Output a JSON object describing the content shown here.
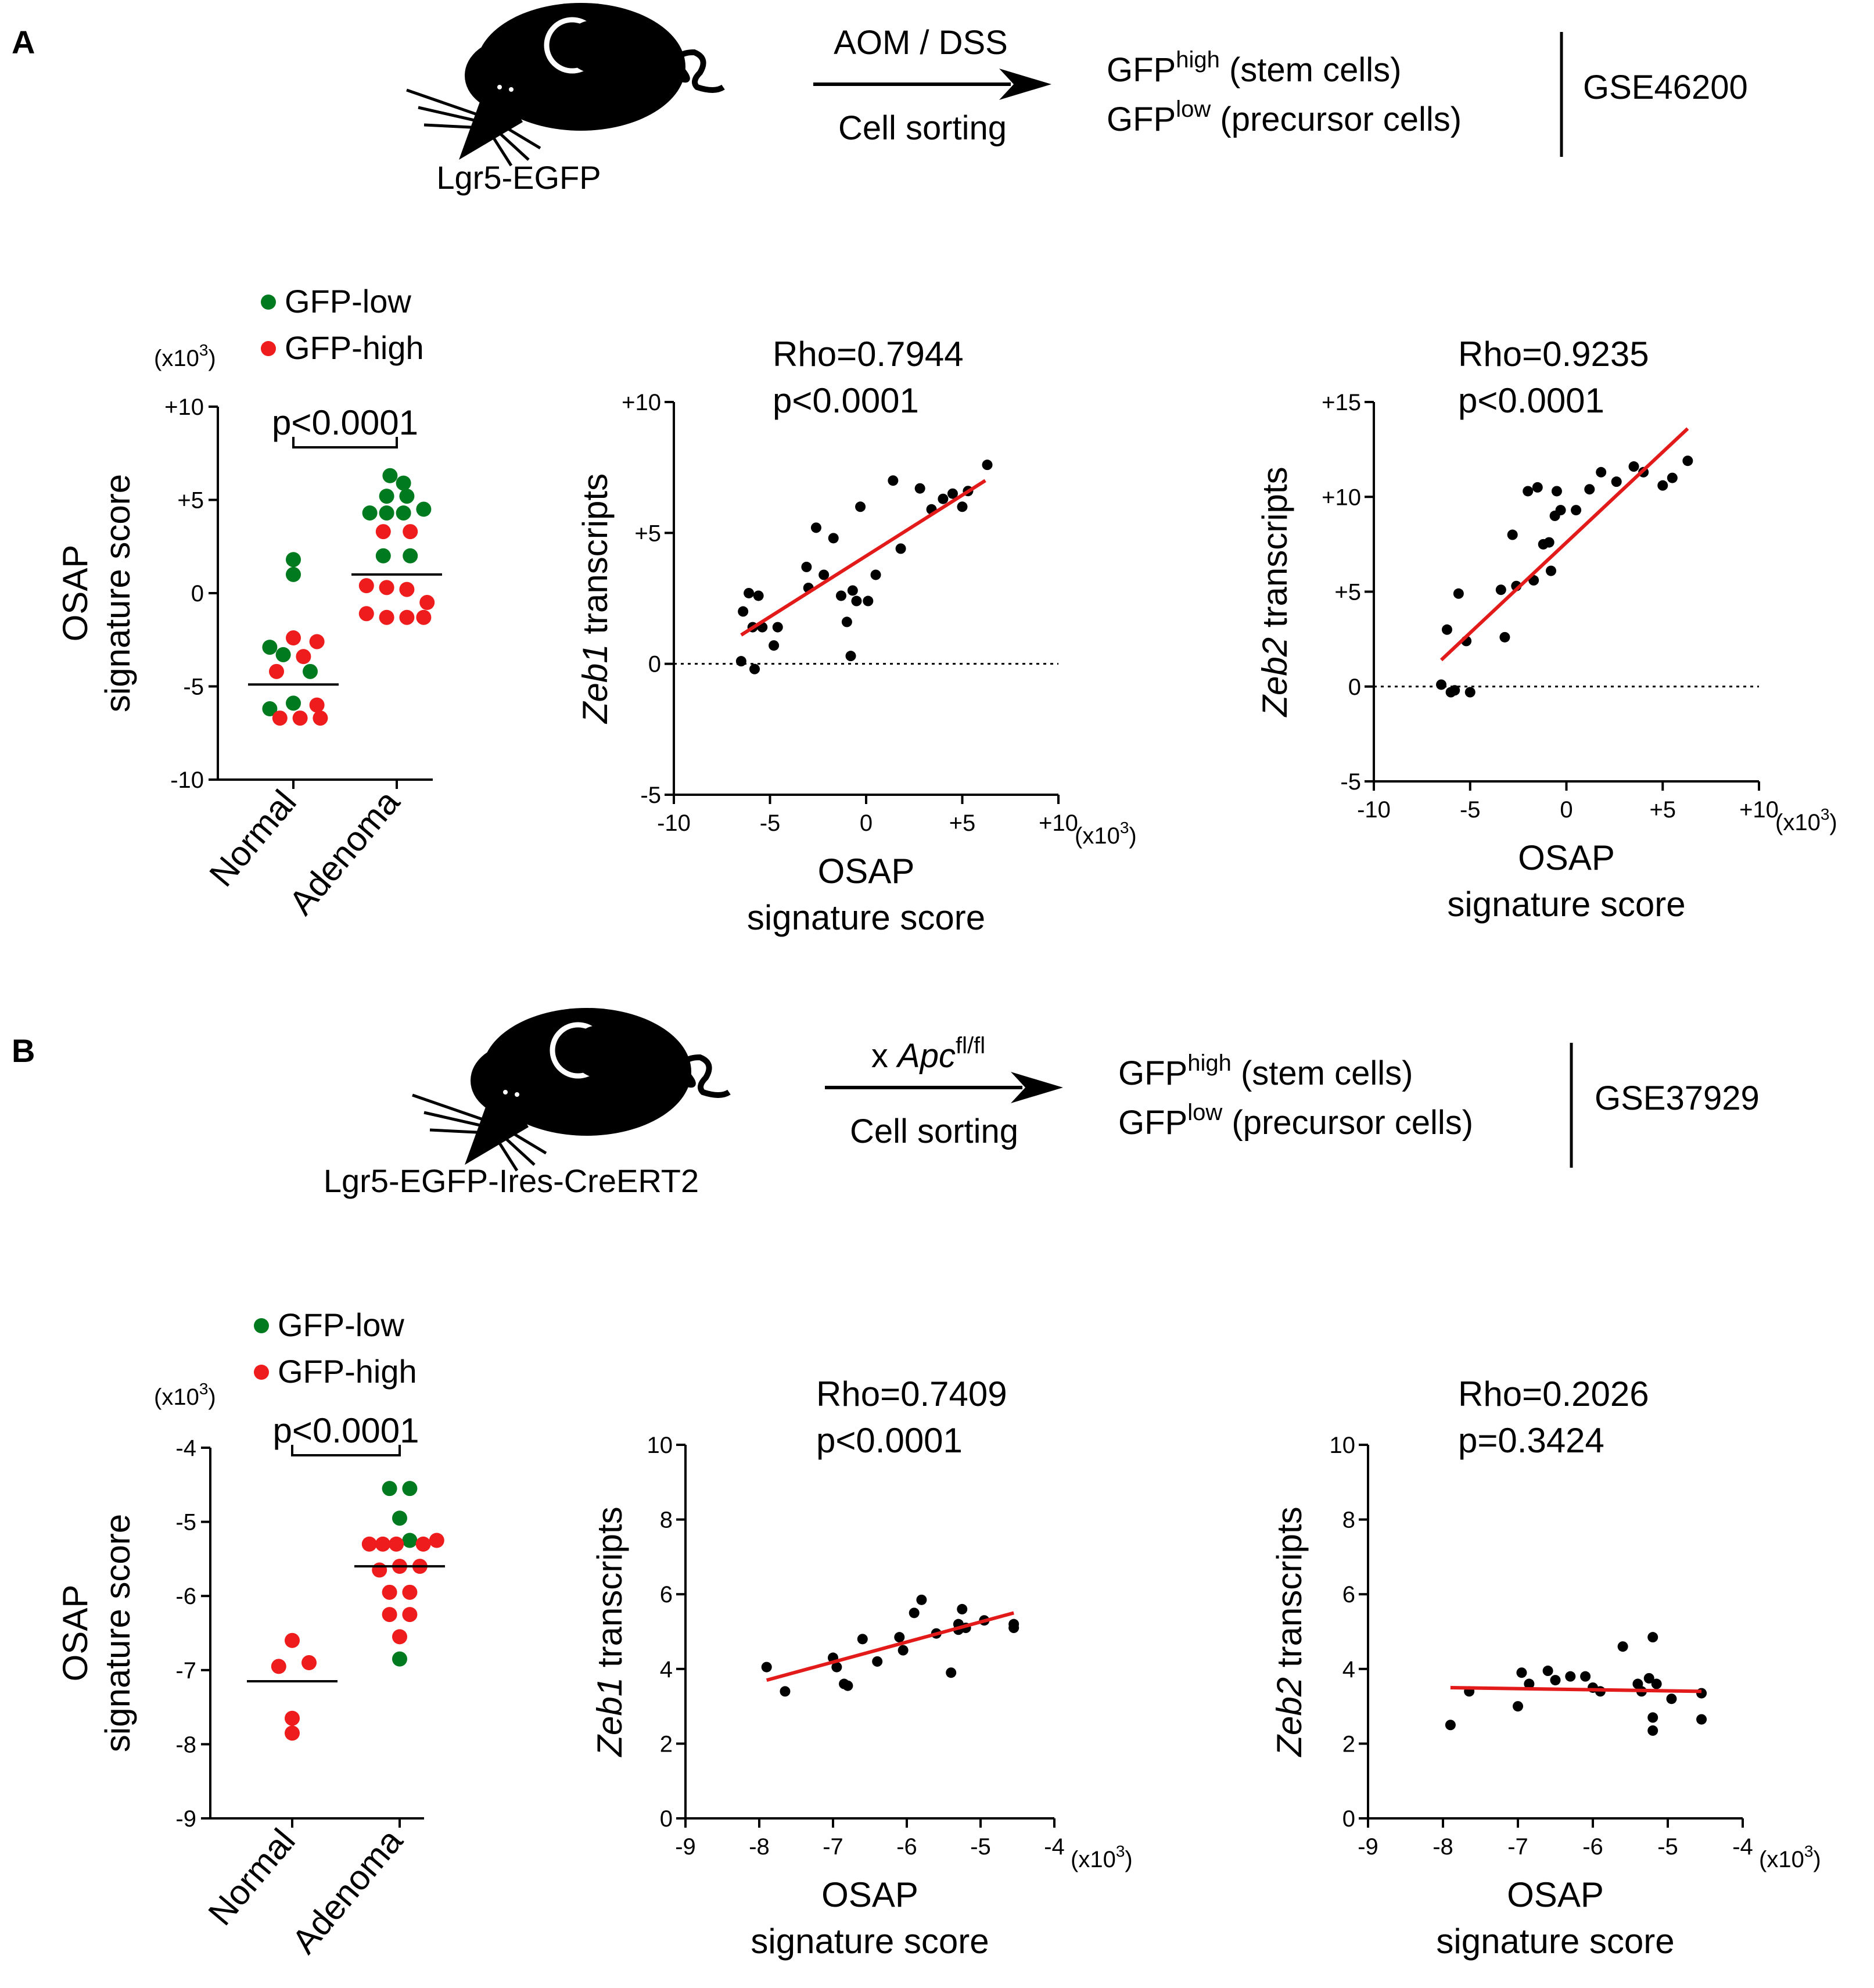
{
  "panels": {
    "A": {
      "label": "A",
      "mouse_label": "Lgr5-EGFP",
      "arrow_top": "AOM / DSS",
      "arrow_bottom": "Cell sorting",
      "sorted": [
        {
          "base": "GFP",
          "sup": "high",
          "rest": " (stem cells)"
        },
        {
          "base": "GFP",
          "sup": "low",
          "rest": " (precursor cells)"
        }
      ],
      "accession": "GSE46200"
    },
    "B": {
      "label": "B",
      "mouse_label": "Lgr5-EGFP-Ires-CreERT2",
      "arrow_top_prefix": "x ",
      "arrow_top_italic": "Apc",
      "arrow_top_sup": "fl/fl",
      "arrow_bottom": "Cell sorting",
      "sorted": [
        {
          "base": "GFP",
          "sup": "high",
          "rest": " (stem cells)"
        },
        {
          "base": "GFP",
          "sup": "low",
          "rest": " (precursor cells)"
        }
      ],
      "accession": "GSE37929"
    }
  },
  "colors": {
    "gfp_low": "#007a1e",
    "gfp_high": "#ee1c1c",
    "fit_line": "#e31a1a",
    "point": "#000000"
  },
  "chart_data": [
    {
      "id": "A-dot",
      "type": "scatter",
      "legend": [
        {
          "label": "GFP-low",
          "color": "#007a1e"
        },
        {
          "label": "GFP-high",
          "color": "#ee1c1c"
        }
      ],
      "scale_note": {
        "base": "(x10",
        "sup": "3",
        "close": ")"
      },
      "ylabel": [
        "OSAP",
        "signature score"
      ],
      "ylim": [
        -10,
        10
      ],
      "yticks": [
        {
          "v": -10,
          "label": "-10"
        },
        {
          "v": -5,
          "label": "-5"
        },
        {
          "v": 0,
          "label": "0"
        },
        {
          "v": 5,
          "label": "+5"
        },
        {
          "v": 10,
          "label": "+10"
        }
      ],
      "categories": [
        "Normal",
        "Adenoma"
      ],
      "pvalue": "p<0.0001",
      "means": [
        -4.9,
        1.0
      ],
      "groups": [
        {
          "name": "Normal",
          "points": [
            {
              "dx": 0,
              "y": 1.8,
              "c": "low"
            },
            {
              "dx": 0,
              "y": 1.0,
              "c": "low"
            },
            {
              "dx": -0.35,
              "y": -2.9,
              "c": "low"
            },
            {
              "dx": 0,
              "y": -2.4,
              "c": "high"
            },
            {
              "dx": 0.35,
              "y": -2.6,
              "c": "high"
            },
            {
              "dx": -0.15,
              "y": -3.3,
              "c": "low"
            },
            {
              "dx": 0.15,
              "y": -3.4,
              "c": "high"
            },
            {
              "dx": -0.25,
              "y": -4.2,
              "c": "high"
            },
            {
              "dx": 0.25,
              "y": -4.2,
              "c": "low"
            },
            {
              "dx": -0.35,
              "y": -6.2,
              "c": "low"
            },
            {
              "dx": 0,
              "y": -5.9,
              "c": "low"
            },
            {
              "dx": 0.35,
              "y": -6.0,
              "c": "high"
            },
            {
              "dx": -0.2,
              "y": -6.7,
              "c": "high"
            },
            {
              "dx": 0.1,
              "y": -6.7,
              "c": "high"
            },
            {
              "dx": 0.4,
              "y": -6.7,
              "c": "high"
            }
          ]
        },
        {
          "name": "Adenoma",
          "points": [
            {
              "dx": -0.1,
              "y": 6.3,
              "c": "low"
            },
            {
              "dx": 0.1,
              "y": 5.9,
              "c": "low"
            },
            {
              "dx": -0.15,
              "y": 5.2,
              "c": "low"
            },
            {
              "dx": 0.15,
              "y": 5.2,
              "c": "low"
            },
            {
              "dx": -0.4,
              "y": 4.3,
              "c": "low"
            },
            {
              "dx": -0.15,
              "y": 4.3,
              "c": "low"
            },
            {
              "dx": 0.1,
              "y": 4.3,
              "c": "low"
            },
            {
              "dx": 0.4,
              "y": 4.5,
              "c": "low"
            },
            {
              "dx": -0.2,
              "y": 3.3,
              "c": "high"
            },
            {
              "dx": 0.2,
              "y": 3.3,
              "c": "high"
            },
            {
              "dx": -0.2,
              "y": 2.0,
              "c": "low"
            },
            {
              "dx": 0.2,
              "y": 2.0,
              "c": "low"
            },
            {
              "dx": -0.45,
              "y": 0.4,
              "c": "high"
            },
            {
              "dx": -0.15,
              "y": 0.3,
              "c": "high"
            },
            {
              "dx": 0.15,
              "y": 0.2,
              "c": "high"
            },
            {
              "dx": 0.45,
              "y": -0.5,
              "c": "high"
            },
            {
              "dx": -0.45,
              "y": -1.1,
              "c": "high"
            },
            {
              "dx": -0.15,
              "y": -1.3,
              "c": "high"
            },
            {
              "dx": 0.15,
              "y": -1.3,
              "c": "high"
            },
            {
              "dx": 0.4,
              "y": -1.3,
              "c": "high"
            }
          ]
        }
      ]
    },
    {
      "id": "A-zeb1",
      "type": "scatter",
      "stat_lines": [
        "Rho=0.7944",
        "p<0.0001"
      ],
      "ylabel_italic": "Zeb1",
      "ylabel_rest": " transcripts",
      "xlabel": [
        "OSAP",
        "signature score"
      ],
      "scale_note": {
        "base": "(x10",
        "sup": "3",
        "close": ")"
      },
      "xlim": [
        -10,
        10
      ],
      "ylim": [
        -5,
        10
      ],
      "xticks": [
        {
          "v": -10,
          "label": "-10"
        },
        {
          "v": -5,
          "label": "-5"
        },
        {
          "v": 0,
          "label": "0"
        },
        {
          "v": 5,
          "label": "+5"
        },
        {
          "v": 10,
          "label": "+10"
        }
      ],
      "yticks": [
        {
          "v": -5,
          "label": "-5"
        },
        {
          "v": 0,
          "label": "0"
        },
        {
          "v": 5,
          "label": "+5"
        },
        {
          "v": 10,
          "label": "+10"
        }
      ],
      "zero_line": true,
      "fit": [
        [
          -6.5,
          1.1
        ],
        [
          6.2,
          7.0
        ]
      ],
      "x": [
        -6.5,
        -6.4,
        -6.1,
        -5.9,
        -5.8,
        -5.6,
        -5.4,
        -4.8,
        -4.6,
        -3.1,
        -3.0,
        -2.6,
        -2.2,
        -1.7,
        -1.3,
        -1.0,
        -0.8,
        -0.7,
        -0.5,
        -0.3,
        0.1,
        0.5,
        1.4,
        1.8,
        2.8,
        3.4,
        4.0,
        4.5,
        5.0,
        5.3,
        6.3
      ],
      "y": [
        0.1,
        2.0,
        2.7,
        1.4,
        -0.2,
        2.6,
        1.4,
        0.7,
        1.4,
        3.7,
        2.9,
        5.2,
        3.4,
        4.8,
        2.6,
        1.6,
        0.3,
        2.8,
        2.4,
        6.0,
        2.4,
        3.4,
        7.0,
        4.4,
        6.7,
        5.9,
        6.3,
        6.5,
        6.0,
        6.6,
        7.6
      ]
    },
    {
      "id": "A-zeb2",
      "type": "scatter",
      "stat_lines": [
        "Rho=0.9235",
        "p<0.0001"
      ],
      "ylabel_italic": "Zeb2",
      "ylabel_rest": " transcripts",
      "xlabel": [
        "OSAP",
        "signature score"
      ],
      "scale_note": {
        "base": "(x10",
        "sup": "3",
        "close": ")"
      },
      "xlim": [
        -10,
        10
      ],
      "ylim": [
        -5,
        15
      ],
      "xticks": [
        {
          "v": -10,
          "label": "-10"
        },
        {
          "v": -5,
          "label": "-5"
        },
        {
          "v": 0,
          "label": "0"
        },
        {
          "v": 5,
          "label": "+5"
        },
        {
          "v": 10,
          "label": "+10"
        }
      ],
      "yticks": [
        {
          "v": -5,
          "label": "-5"
        },
        {
          "v": 0,
          "label": "0"
        },
        {
          "v": 5,
          "label": "+5"
        },
        {
          "v": 10,
          "label": "+10"
        },
        {
          "v": 15,
          "label": "+15"
        }
      ],
      "zero_line": true,
      "fit": [
        [
          -6.5,
          1.4
        ],
        [
          6.3,
          13.6
        ]
      ],
      "x": [
        -6.5,
        -6.2,
        -6.0,
        -5.8,
        -5.6,
        -5.2,
        -5.0,
        -3.4,
        -3.2,
        -2.8,
        -2.6,
        -2.0,
        -1.7,
        -1.5,
        -1.2,
        -0.9,
        -0.8,
        -0.6,
        -0.5,
        -0.3,
        0.5,
        1.2,
        1.8,
        2.6,
        3.5,
        4.0,
        5.0,
        5.5,
        6.3
      ],
      "y": [
        0.1,
        3.0,
        -0.3,
        -0.2,
        4.9,
        2.4,
        -0.3,
        5.1,
        2.6,
        8.0,
        5.3,
        10.3,
        5.6,
        10.5,
        7.5,
        7.6,
        6.1,
        9.0,
        10.3,
        9.3,
        9.3,
        10.4,
        11.3,
        10.8,
        11.6,
        11.3,
        10.6,
        11.0,
        11.9
      ]
    },
    {
      "id": "B-dot",
      "type": "scatter",
      "legend": [
        {
          "label": "GFP-low",
          "color": "#007a1e"
        },
        {
          "label": "GFP-high",
          "color": "#ee1c1c"
        }
      ],
      "scale_note": {
        "base": "(x10",
        "sup": "3",
        "close": ")"
      },
      "ylabel": [
        "OSAP",
        "signature score"
      ],
      "ylim": [
        -9,
        -4
      ],
      "yticks": [
        {
          "v": -9,
          "label": "-9"
        },
        {
          "v": -8,
          "label": "-8"
        },
        {
          "v": -7,
          "label": "-7"
        },
        {
          "v": -6,
          "label": "-6"
        },
        {
          "v": -5,
          "label": "-5"
        },
        {
          "v": -4,
          "label": "-4"
        }
      ],
      "categories": [
        "Normal",
        "Adenoma"
      ],
      "pvalue": "p<0.0001",
      "means": [
        -7.15,
        -5.6
      ],
      "groups": [
        {
          "name": "Normal",
          "points": [
            {
              "dx": 0,
              "y": -6.6,
              "c": "high"
            },
            {
              "dx": -0.2,
              "y": -6.95,
              "c": "high"
            },
            {
              "dx": 0.25,
              "y": -6.9,
              "c": "high"
            },
            {
              "dx": 0,
              "y": -7.65,
              "c": "high"
            },
            {
              "dx": 0,
              "y": -7.85,
              "c": "high"
            }
          ]
        },
        {
          "name": "Adenoma",
          "points": [
            {
              "dx": -0.15,
              "y": -4.55,
              "c": "low"
            },
            {
              "dx": 0.15,
              "y": -4.55,
              "c": "low"
            },
            {
              "dx": 0,
              "y": -4.95,
              "c": "low"
            },
            {
              "dx": 0.15,
              "y": -5.25,
              "c": "low"
            },
            {
              "dx": -0.45,
              "y": -5.3,
              "c": "high"
            },
            {
              "dx": -0.25,
              "y": -5.3,
              "c": "high"
            },
            {
              "dx": -0.05,
              "y": -5.3,
              "c": "high"
            },
            {
              "dx": 0.35,
              "y": -5.3,
              "c": "high"
            },
            {
              "dx": 0.55,
              "y": -5.25,
              "c": "high"
            },
            {
              "dx": -0.3,
              "y": -5.65,
              "c": "high"
            },
            {
              "dx": 0,
              "y": -5.6,
              "c": "high"
            },
            {
              "dx": 0.3,
              "y": -5.6,
              "c": "high"
            },
            {
              "dx": -0.15,
              "y": -5.95,
              "c": "high"
            },
            {
              "dx": 0.15,
              "y": -5.95,
              "c": "high"
            },
            {
              "dx": -0.15,
              "y": -6.25,
              "c": "high"
            },
            {
              "dx": 0.15,
              "y": -6.25,
              "c": "high"
            },
            {
              "dx": 0,
              "y": -6.55,
              "c": "high"
            },
            {
              "dx": 0,
              "y": -6.85,
              "c": "low"
            }
          ]
        }
      ]
    },
    {
      "id": "B-zeb1",
      "type": "scatter",
      "stat_lines": [
        "Rho=0.7409",
        "p<0.0001"
      ],
      "ylabel_italic": "Zeb1",
      "ylabel_rest": " transcripts",
      "xlabel": [
        "OSAP",
        "signature score"
      ],
      "scale_note": {
        "base": "(x10",
        "sup": "3",
        "close": ")"
      },
      "xlim": [
        -9,
        -4
      ],
      "ylim": [
        0,
        10
      ],
      "xticks": [
        {
          "v": -9,
          "label": "-9"
        },
        {
          "v": -8,
          "label": "-8"
        },
        {
          "v": -7,
          "label": "-7"
        },
        {
          "v": -6,
          "label": "-6"
        },
        {
          "v": -5,
          "label": "-5"
        },
        {
          "v": -4,
          "label": "-4"
        }
      ],
      "yticks": [
        {
          "v": 0,
          "label": "0"
        },
        {
          "v": 2,
          "label": "2"
        },
        {
          "v": 4,
          "label": "4"
        },
        {
          "v": 6,
          "label": "6"
        },
        {
          "v": 8,
          "label": "8"
        },
        {
          "v": 10,
          "label": "10"
        }
      ],
      "zero_line": false,
      "fit": [
        [
          -7.9,
          3.7
        ],
        [
          -4.55,
          5.5
        ]
      ],
      "x": [
        -7.9,
        -7.65,
        -7.0,
        -6.95,
        -6.85,
        -6.8,
        -6.6,
        -6.4,
        -6.1,
        -6.05,
        -5.9,
        -5.8,
        -5.6,
        -5.4,
        -5.3,
        -5.3,
        -5.25,
        -5.2,
        -4.95,
        -4.55,
        -4.55
      ],
      "y": [
        4.05,
        3.4,
        4.3,
        4.05,
        3.6,
        3.55,
        4.8,
        4.2,
        4.85,
        4.5,
        5.5,
        5.85,
        4.95,
        3.9,
        5.05,
        5.2,
        5.6,
        5.1,
        5.3,
        5.2,
        5.1
      ]
    },
    {
      "id": "B-zeb2",
      "type": "scatter",
      "stat_lines": [
        "Rho=0.2026",
        "p=0.3424"
      ],
      "ylabel_italic": "Zeb2",
      "ylabel_rest": " transcripts",
      "xlabel": [
        "OSAP",
        "signature score"
      ],
      "scale_note": {
        "base": "(x10",
        "sup": "3",
        "close": ")"
      },
      "xlim": [
        -9,
        -4
      ],
      "ylim": [
        0,
        10
      ],
      "xticks": [
        {
          "v": -9,
          "label": "-9"
        },
        {
          "v": -8,
          "label": "-8"
        },
        {
          "v": -7,
          "label": "-7"
        },
        {
          "v": -6,
          "label": "-6"
        },
        {
          "v": -5,
          "label": "-5"
        },
        {
          "v": -4,
          "label": "-4"
        }
      ],
      "yticks": [
        {
          "v": 0,
          "label": "0"
        },
        {
          "v": 2,
          "label": "2"
        },
        {
          "v": 4,
          "label": "4"
        },
        {
          "v": 6,
          "label": "6"
        },
        {
          "v": 8,
          "label": "8"
        },
        {
          "v": 10,
          "label": "10"
        }
      ],
      "zero_line": false,
      "fit": [
        [
          -7.9,
          3.5
        ],
        [
          -4.55,
          3.4
        ]
      ],
      "x": [
        -7.9,
        -7.65,
        -7.0,
        -6.95,
        -6.85,
        -6.6,
        -6.5,
        -6.3,
        -6.1,
        -6.0,
        -5.9,
        -5.6,
        -5.4,
        -5.35,
        -5.25,
        -5.2,
        -5.2,
        -5.2,
        -5.15,
        -4.95,
        -4.55,
        -4.55
      ],
      "y": [
        2.5,
        3.4,
        3.0,
        3.9,
        3.6,
        3.95,
        3.7,
        3.8,
        3.8,
        3.5,
        3.4,
        4.6,
        3.6,
        3.4,
        3.75,
        2.7,
        2.35,
        4.85,
        3.6,
        3.2,
        3.35,
        2.65
      ]
    }
  ]
}
